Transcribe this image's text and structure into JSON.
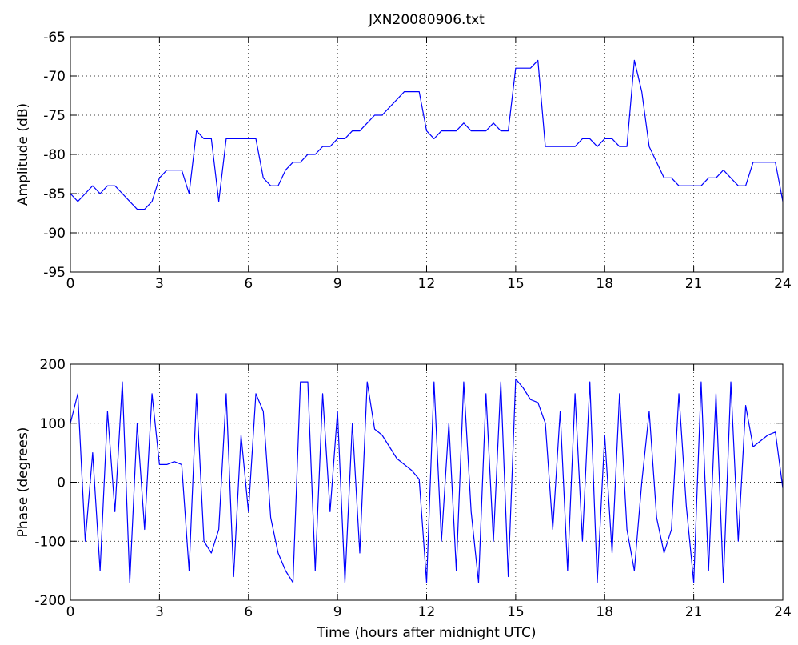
{
  "chart_data": [
    {
      "type": "line",
      "title": "JXN20080906.txt",
      "y_label": "Amplitude (dB)",
      "color": "#0000ff",
      "grid": true,
      "x": [
        0,
        0.25,
        0.5,
        0.75,
        1,
        1.25,
        1.5,
        1.75,
        2,
        2.25,
        2.5,
        2.75,
        3,
        3.25,
        3.5,
        3.75,
        4,
        4.25,
        4.5,
        4.75,
        5,
        5.25,
        5.5,
        5.75,
        6,
        6.25,
        6.5,
        6.75,
        7,
        7.25,
        7.5,
        7.75,
        8,
        8.25,
        8.5,
        8.75,
        9,
        9.25,
        9.5,
        9.75,
        10,
        10.25,
        10.5,
        10.75,
        11,
        11.25,
        11.5,
        11.75,
        12,
        12.25,
        12.5,
        12.75,
        13,
        13.25,
        13.5,
        13.75,
        14,
        14.25,
        14.5,
        14.75,
        15,
        15.25,
        15.5,
        15.75,
        16,
        16.25,
        16.5,
        16.75,
        17,
        17.25,
        17.5,
        17.75,
        18,
        18.25,
        18.5,
        18.75,
        19,
        19.25,
        19.5,
        19.75,
        20,
        20.25,
        20.5,
        20.75,
        21,
        21.25,
        21.5,
        21.75,
        22,
        22.25,
        22.5,
        22.75,
        23,
        23.25,
        23.5,
        23.75,
        24
      ],
      "values": [
        -85,
        -86,
        -85,
        -84,
        -85,
        -84,
        -84,
        -85,
        -86,
        -87,
        -87,
        -86,
        -83,
        -82,
        -82,
        -82,
        -85,
        -77,
        -78,
        -78,
        -86,
        -78,
        -78,
        -78,
        -78,
        -78,
        -83,
        -84,
        -84,
        -82,
        -81,
        -81,
        -80,
        -80,
        -79,
        -79,
        -78,
        -78,
        -77,
        -77,
        -76,
        -75,
        -75,
        -74,
        -73,
        -72,
        -72,
        -72,
        -77,
        -78,
        -77,
        -77,
        -77,
        -76,
        -77,
        -77,
        -77,
        -76,
        -77,
        -77,
        -69,
        -69,
        -69,
        -68,
        -79,
        -79,
        -79,
        -79,
        -79,
        -78,
        -78,
        -79,
        -78,
        -78,
        -79,
        -79,
        -68,
        -72,
        -79,
        -81,
        -83,
        -83,
        -84,
        -84,
        -84,
        -84,
        -83,
        -83,
        -82,
        -83,
        -84,
        -84,
        -81,
        -81,
        -81,
        -81,
        -86
      ],
      "xlim": [
        0,
        24
      ],
      "xticks": [
        0,
        3,
        6,
        9,
        12,
        15,
        18,
        21,
        24
      ],
      "ylim": [
        -95,
        -65
      ],
      "yticks": [
        -95,
        -90,
        -85,
        -80,
        -75,
        -70,
        -65
      ]
    },
    {
      "type": "line",
      "x_label": "Time (hours after midnight UTC)",
      "y_label": "Phase (degrees)",
      "color": "#0000ff",
      "grid": true,
      "x": [
        0,
        0.25,
        0.5,
        0.75,
        1,
        1.25,
        1.5,
        1.75,
        2,
        2.25,
        2.5,
        2.75,
        3,
        3.25,
        3.5,
        3.75,
        4,
        4.25,
        4.5,
        4.75,
        5,
        5.25,
        5.5,
        5.75,
        6,
        6.25,
        6.5,
        6.75,
        7,
        7.25,
        7.5,
        7.75,
        8,
        8.25,
        8.5,
        8.75,
        9,
        9.25,
        9.5,
        9.75,
        10,
        10.25,
        10.5,
        10.75,
        11,
        11.25,
        11.5,
        11.75,
        12,
        12.25,
        12.5,
        12.75,
        13,
        13.25,
        13.5,
        13.75,
        14,
        14.25,
        14.5,
        14.75,
        15,
        15.25,
        15.5,
        15.75,
        16,
        16.25,
        16.5,
        16.75,
        17,
        17.25,
        17.5,
        17.75,
        18,
        18.25,
        18.5,
        18.75,
        19,
        19.25,
        19.5,
        19.75,
        20,
        20.25,
        20.5,
        20.75,
        21,
        21.25,
        21.5,
        21.75,
        22,
        22.25,
        22.5,
        22.75,
        23,
        23.25,
        23.5,
        23.75,
        24
      ],
      "values": [
        100,
        150,
        -100,
        50,
        -150,
        120,
        -50,
        170,
        -170,
        100,
        -80,
        150,
        30,
        30,
        35,
        30,
        -150,
        150,
        -100,
        -120,
        -80,
        150,
        -160,
        80,
        -50,
        150,
        120,
        -60,
        -120,
        -150,
        -170,
        170,
        170,
        -150,
        150,
        -50,
        120,
        -170,
        100,
        -120,
        170,
        90,
        80,
        60,
        40,
        30,
        20,
        5,
        -170,
        170,
        -100,
        100,
        -150,
        170,
        -50,
        -170,
        150,
        -100,
        170,
        -160,
        175,
        160,
        140,
        135,
        100,
        -80,
        120,
        -150,
        150,
        -100,
        170,
        -170,
        80,
        -120,
        150,
        -80,
        -150,
        0,
        120,
        -60,
        -120,
        -80,
        150,
        -40,
        -170,
        170,
        -150,
        150,
        -170,
        170,
        -100,
        130,
        60,
        70,
        80,
        85,
        -10
      ],
      "xlim": [
        0,
        24
      ],
      "xticks": [
        0,
        3,
        6,
        9,
        12,
        15,
        18,
        21,
        24
      ],
      "ylim": [
        -200,
        200
      ],
      "yticks": [
        -200,
        -100,
        0,
        100,
        200
      ]
    }
  ]
}
